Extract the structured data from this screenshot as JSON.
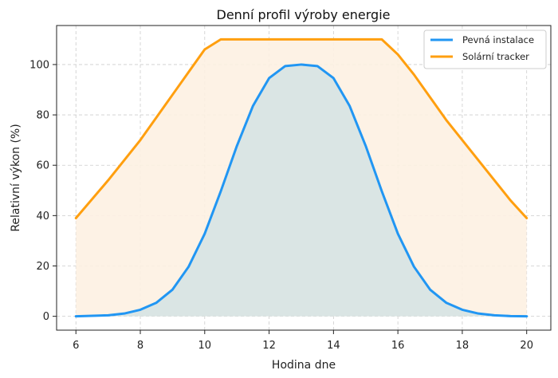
{
  "chart_data": {
    "type": "area",
    "title": "Denní profil výroby energie",
    "xlabel": "Hodina dne",
    "ylabel": "Relativní výkon (%)",
    "xlim": [
      5.4,
      20.75
    ],
    "ylim": [
      -5.5,
      115.5
    ],
    "x_ticks": [
      6,
      8,
      10,
      12,
      14,
      16,
      18,
      20
    ],
    "y_ticks": [
      0,
      20,
      40,
      60,
      80,
      100
    ],
    "grid": true,
    "legend_position": "top-right",
    "x": [
      6,
      7,
      7.5,
      8,
      8.5,
      9,
      9.5,
      10,
      10.5,
      11,
      11.5,
      12,
      12.5,
      13,
      13.5,
      14,
      14.5,
      15,
      15.5,
      16,
      16.5,
      17,
      17.5,
      18,
      18.5,
      19,
      19.5,
      20
    ],
    "series": [
      {
        "name": "Pevná instalace",
        "color": "#2196f3",
        "fill": "#d6e3e3",
        "values": [
          0.0,
          0.4,
          1.1,
          2.6,
          5.4,
          10.6,
          19.7,
          32.8,
          49.7,
          67.7,
          83.6,
          94.6,
          99.4,
          100.0,
          99.4,
          94.6,
          83.6,
          67.7,
          49.7,
          32.8,
          19.7,
          10.6,
          5.4,
          2.6,
          1.1,
          0.4,
          0.1,
          0.0
        ]
      },
      {
        "name": "Solární tracker",
        "color": "#ff9f0f",
        "fill": "#fdf1e2",
        "values": [
          39,
          54,
          62,
          70,
          79,
          88,
          97,
          106,
          110,
          110,
          110,
          110,
          110,
          110,
          110,
          110,
          110,
          110,
          110,
          104,
          96,
          87,
          78,
          70,
          62,
          54,
          46,
          39
        ]
      }
    ]
  }
}
